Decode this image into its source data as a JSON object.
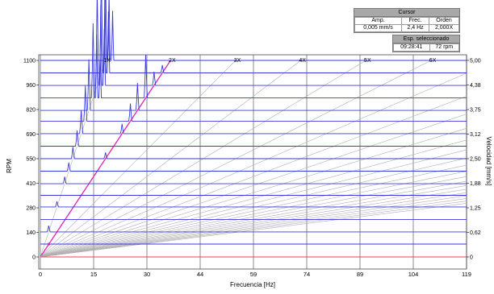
{
  "chart_data": {
    "type": "waterfall",
    "xlabel": "Frecuencia [Hz]",
    "ylabel_left": "RPM",
    "ylabel_right": "Velocidad [mm/s]",
    "x_ticks": [
      "0",
      "15",
      "30",
      "44",
      "59",
      "74",
      "89",
      "104",
      "119"
    ],
    "xlim": [
      0,
      120
    ],
    "rpm_ticks": [
      "0",
      "140",
      "280",
      "410",
      "550",
      "690",
      "820",
      "960",
      "1100"
    ],
    "rpm_lim": [
      0,
      1150
    ],
    "vel_ticks": [
      "0",
      "0,62",
      "1,25",
      "1,88",
      "2,50",
      "3,12",
      "3,75",
      "4,38",
      "5,00"
    ],
    "order_labels": [
      "1X",
      "2X",
      "3X",
      "4X",
      "5X",
      "6X"
    ],
    "highlighted_order": 2,
    "orders_drawn": 24,
    "spectra_rpm": [
      0,
      72,
      140,
      210,
      280,
      345,
      410,
      480,
      550,
      620,
      690,
      760,
      820,
      890,
      960,
      1030,
      1100
    ],
    "peaks": [
      {
        "order": 1,
        "rpm": 140,
        "amp_mm_s": 0.16
      },
      {
        "order": 1,
        "rpm": 280,
        "amp_mm_s": 0.14
      },
      {
        "order": 1,
        "rpm": 410,
        "amp_mm_s": 0.18
      },
      {
        "order": 1,
        "rpm": 480,
        "amp_mm_s": 0.22
      },
      {
        "order": 1,
        "rpm": 550,
        "amp_mm_s": 0.3
      },
      {
        "order": 1,
        "rpm": 620,
        "amp_mm_s": 0.4
      },
      {
        "order": 1,
        "rpm": 690,
        "amp_mm_s": 0.6
      },
      {
        "order": 1,
        "rpm": 760,
        "amp_mm_s": 0.9
      },
      {
        "order": 1,
        "rpm": 820,
        "amp_mm_s": 1.3
      },
      {
        "order": 1,
        "rpm": 890,
        "amp_mm_s": 1.9
      },
      {
        "order": 1,
        "rpm": 960,
        "amp_mm_s": 2.4
      },
      {
        "order": 1,
        "rpm": 1030,
        "amp_mm_s": 2.6
      },
      {
        "order": 1,
        "rpm": 1100,
        "amp_mm_s": 2.1
      },
      {
        "order": 2,
        "rpm": 550,
        "amp_mm_s": 0.16
      },
      {
        "order": 2,
        "rpm": 690,
        "amp_mm_s": 0.25
      },
      {
        "order": 2,
        "rpm": 760,
        "amp_mm_s": 0.45
      },
      {
        "order": 2,
        "rpm": 820,
        "amp_mm_s": 0.7
      },
      {
        "order": 2,
        "rpm": 890,
        "amp_mm_s": 1.1
      },
      {
        "order": 2,
        "rpm": 960,
        "amp_mm_s": 0.35
      },
      {
        "order": 2,
        "rpm": 1030,
        "amp_mm_s": 0.2
      }
    ],
    "baseline_color": "#e8483c",
    "spectrum_color": "#3a3adc",
    "order_line_color": "#b0b0b0",
    "highlight_color": "#e61fb4",
    "grid": true
  },
  "cursor": {
    "title": "Cursor",
    "headers": [
      "Amp.",
      "Frec.",
      "Orden"
    ],
    "values": [
      "0,005 mm/s",
      "2,4 Hz",
      "2,000X"
    ]
  },
  "selected": {
    "title": "Esp. seleccionado",
    "time": "09:28:41",
    "rpm": "72 rpm"
  }
}
